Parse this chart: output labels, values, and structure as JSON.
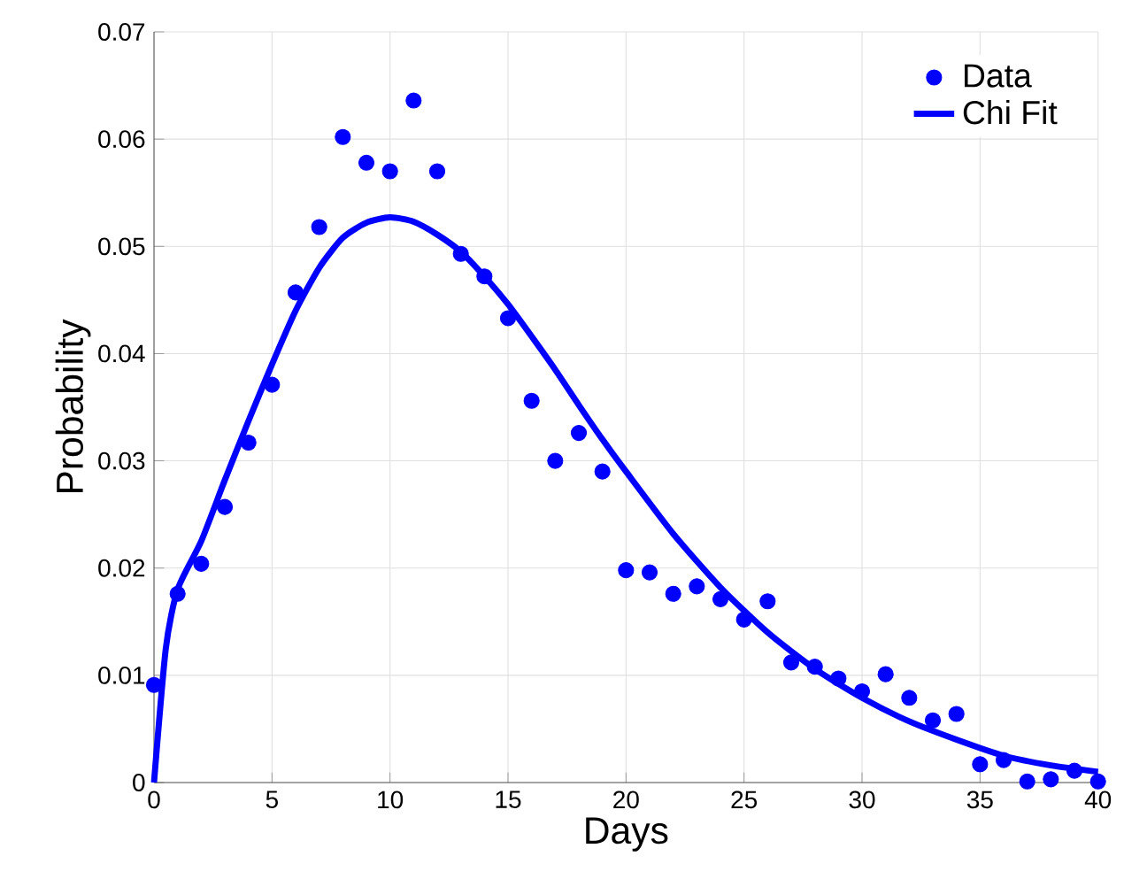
{
  "chart_data": {
    "type": "scatter",
    "xlabel": "Days",
    "ylabel": "Probability",
    "xlim": [
      0,
      40
    ],
    "ylim": [
      0,
      0.07
    ],
    "xticks": [
      0,
      5,
      10,
      15,
      20,
      25,
      30,
      35,
      40
    ],
    "yticks": [
      0,
      0.01,
      0.02,
      0.03,
      0.04,
      0.05,
      0.06,
      0.07
    ],
    "grid": true,
    "legend": "top right",
    "series": [
      {
        "name": "Data",
        "marker": "circle",
        "color": "#0000ff",
        "x": [
          0,
          1,
          2,
          3,
          4,
          5,
          6,
          7,
          8,
          9,
          10,
          11,
          12,
          13,
          14,
          15,
          16,
          17,
          18,
          19,
          20,
          21,
          22,
          23,
          24,
          25,
          26,
          27,
          28,
          29,
          30,
          31,
          32,
          33,
          34,
          35,
          36,
          37,
          38,
          39,
          40
        ],
        "values": [
          0.0091,
          0.0176,
          0.0204,
          0.0257,
          0.0317,
          0.0371,
          0.0457,
          0.0518,
          0.0602,
          0.0578,
          0.057,
          0.0636,
          0.057,
          0.0493,
          0.0472,
          0.0433,
          0.0356,
          0.03,
          0.0326,
          0.029,
          0.0198,
          0.0196,
          0.0176,
          0.0183,
          0.0171,
          0.0152,
          0.0169,
          0.0112,
          0.0108,
          0.0097,
          0.0085,
          0.0101,
          0.0079,
          0.0058,
          0.0064,
          0.0017,
          0.0021,
          0.0001,
          0.0003,
          0.0011,
          0.0001
        ]
      },
      {
        "name": "Chi Fit",
        "type": "line",
        "marker": "none",
        "line_style": "solid",
        "color": "#0000ff",
        "x": [
          0,
          0.5,
          1,
          2,
          3,
          4,
          5,
          6,
          7,
          8,
          9,
          10,
          11,
          12,
          13,
          14,
          15,
          16,
          17,
          18,
          19,
          20,
          22,
          24,
          26,
          28,
          30,
          32,
          34,
          36,
          38,
          40
        ],
        "values": [
          0,
          0.0125,
          0.018,
          0.0225,
          0.0282,
          0.0337,
          0.039,
          0.044,
          0.048,
          0.0508,
          0.0522,
          0.0527,
          0.0523,
          0.0511,
          0.0495,
          0.0472,
          0.0446,
          0.0416,
          0.0385,
          0.0352,
          0.032,
          0.029,
          0.0232,
          0.0182,
          0.014,
          0.0106,
          0.0079,
          0.0057,
          0.004,
          0.0025,
          0.0016,
          0.001
        ]
      }
    ]
  }
}
